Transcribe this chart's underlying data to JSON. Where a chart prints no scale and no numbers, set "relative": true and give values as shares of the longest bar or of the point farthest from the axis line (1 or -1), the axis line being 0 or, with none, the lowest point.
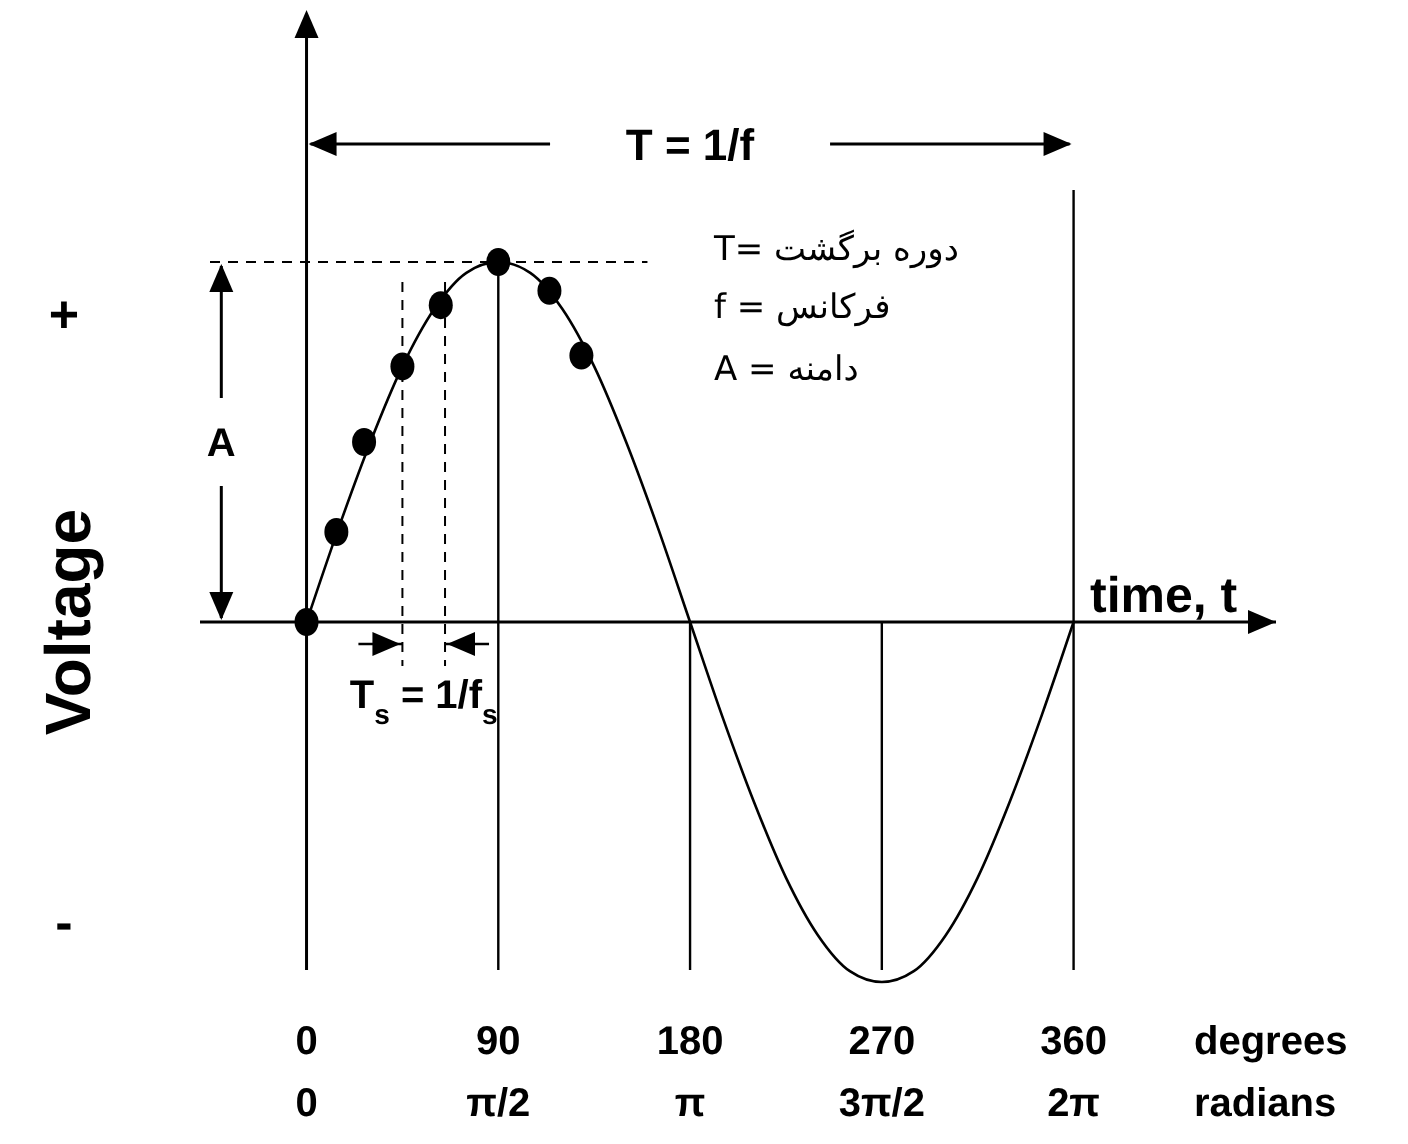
{
  "chart_data": {
    "type": "line",
    "relative": true,
    "xlabel": "time, t",
    "ylabel": "Voltage",
    "xlim": [
      -50,
      455
    ],
    "xticks": [
      0,
      90,
      180,
      270,
      360
    ],
    "series": [
      {
        "color": "#000000",
        "marker": "none",
        "x": [
          0,
          15,
          30,
          45,
          60,
          75,
          90,
          105,
          120,
          135,
          150,
          165,
          180,
          195,
          210,
          225,
          240,
          255,
          270,
          285,
          300,
          315,
          330,
          345,
          360
        ],
        "values": [
          0,
          0.26,
          0.5,
          0.71,
          0.87,
          0.97,
          1,
          0.97,
          0.87,
          0.71,
          0.5,
          0.26,
          0,
          -0.26,
          -0.5,
          -0.71,
          -0.87,
          -0.97,
          -1,
          -0.97,
          -0.87,
          -0.71,
          -0.5,
          -0.26,
          0
        ]
      },
      {
        "type": "scatter",
        "color": "#000000",
        "marker": "circle",
        "x": [
          0,
          14,
          27,
          45,
          63,
          90,
          114,
          129
        ],
        "values": [
          0,
          0.25,
          0.5,
          0.71,
          0.88,
          1,
          0.92,
          0.74
        ]
      }
    ],
    "ref_lines": [
      {
        "axis": "x",
        "value": 90
      },
      {
        "axis": "x",
        "value": 180
      },
      {
        "axis": "x",
        "value": 270
      },
      {
        "axis": "x",
        "value": 360
      },
      {
        "axis": "x",
        "value": 45,
        "line_style": "dashed"
      },
      {
        "axis": "x",
        "value": 65,
        "line_style": "dashed"
      },
      {
        "axis": "y",
        "value": 1,
        "line_style": "dashed"
      }
    ],
    "annotations": [
      "T = 1/f",
      "A",
      "T$_{s}$ = 1/f$_{s}$",
      "T= دوره برگشت",
      "f = فرکانس",
      "A = دامنه",
      "+",
      "-",
      "degrees",
      "radians",
      "0",
      "π/2",
      "π",
      "3π/2",
      "2π"
    ]
  }
}
